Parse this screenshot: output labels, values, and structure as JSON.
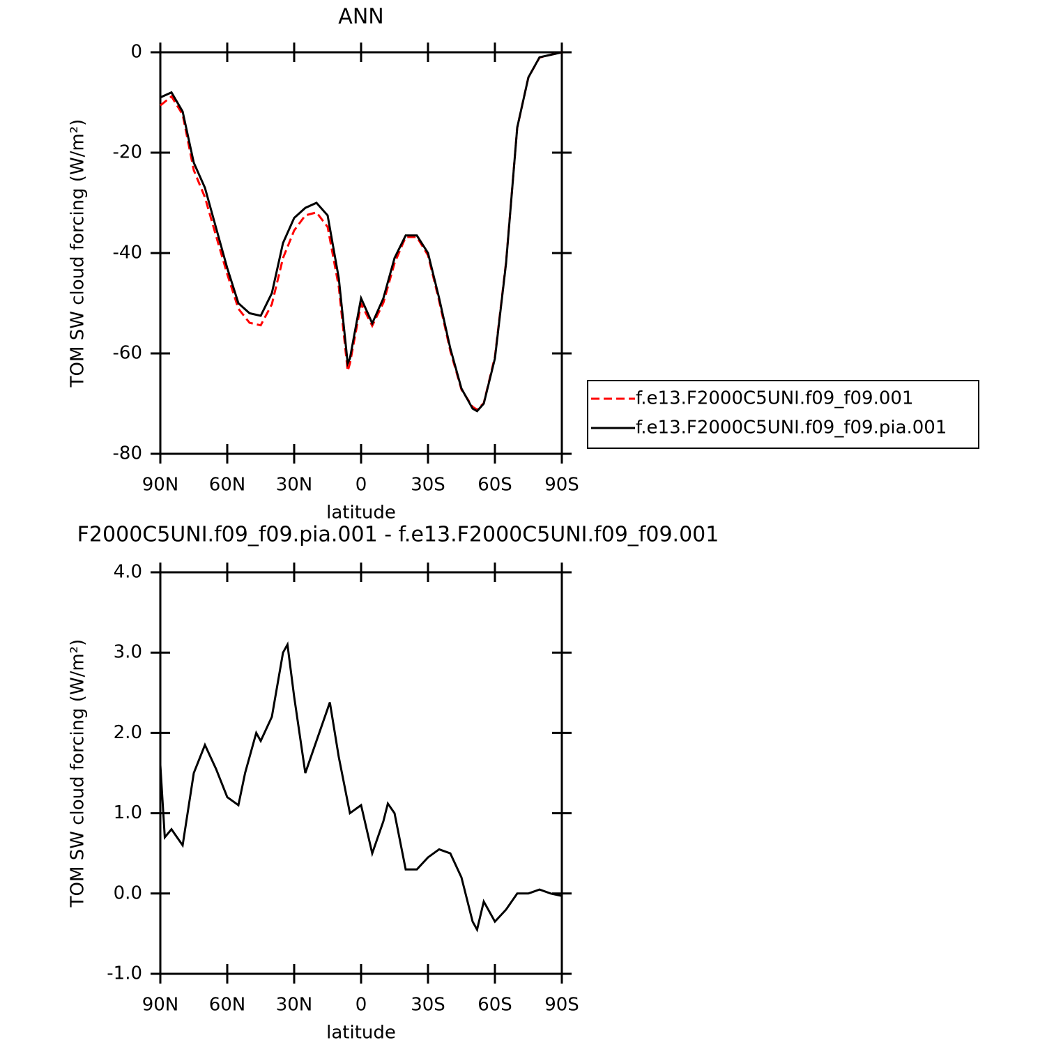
{
  "chart_data": [
    {
      "type": "line",
      "title": "ANN",
      "x_label": "latitude",
      "y_label": "TOM SW cloud forcing (W/m²)",
      "x": [
        90,
        85,
        80,
        75,
        70,
        65,
        60,
        55,
        50,
        45,
        40,
        35,
        30,
        25,
        20,
        15,
        10,
        6,
        5,
        0,
        -5,
        -10,
        -15,
        -20,
        -25,
        -30,
        -35,
        -40,
        -45,
        -50,
        -52,
        -55,
        -60,
        -65,
        -70,
        -75,
        -80,
        -85,
        -90
      ],
      "series": [
        {
          "name": "f.e13.F2000C5UNI.f09_f09.001",
          "color": "#ff0000",
          "style": "dashed",
          "values": [
            -10.6,
            -8.8,
            -12.4,
            -23.5,
            -28.9,
            -36.6,
            -44.2,
            -51.1,
            -53.9,
            -54.4,
            -50.2,
            -41,
            -35.5,
            -32.5,
            -31.9,
            -34.8,
            -46.7,
            -63.5,
            -62,
            -50.1,
            -54.5,
            -49.9,
            -42,
            -36.8,
            -36.8,
            -40.45,
            -49.55,
            -59.5,
            -67.2,
            -70.65,
            -71.2,
            -69.9,
            -60.65,
            -41.8,
            -15,
            -5,
            -1.05,
            -0.5,
            0
          ]
        },
        {
          "name": "f.e13.F2000C5UNI.f09_f09.pia.001",
          "color": "#000000",
          "style": "solid",
          "values": [
            -9,
            -8,
            -11.8,
            -22,
            -27,
            -35,
            -43,
            -50,
            -52,
            -52.5,
            -48,
            -38,
            -33,
            -31,
            -30,
            -32.5,
            -45,
            -62,
            -61,
            -49,
            -54,
            -49,
            -41,
            -36.5,
            -36.5,
            -40,
            -49,
            -59,
            -67,
            -71,
            -71.5,
            -70,
            -61,
            -42,
            -15,
            -5,
            -1,
            -0.5,
            0
          ]
        }
      ],
      "xlim": [
        90,
        -90
      ],
      "xticks": [
        {
          "value": 90,
          "label": "90N"
        },
        {
          "value": 60,
          "label": "60N"
        },
        {
          "value": 30,
          "label": "30N"
        },
        0,
        {
          "value": -30,
          "label": "30S"
        },
        {
          "value": -60,
          "label": "60S"
        },
        {
          "value": -90,
          "label": "90S"
        }
      ],
      "ylim": [
        -80,
        0
      ],
      "yticks": [
        0,
        -20,
        -40,
        -60,
        -80
      ],
      "legend": "outside-right"
    },
    {
      "type": "line",
      "title": "F2000C5UNI.f09_f09.pia.001 - f.e13.F2000C5UNI.f09_f09.001",
      "x_label": "latitude",
      "y_label": "TOM SW cloud forcing (W/m²)",
      "x": [
        90,
        88,
        85,
        80,
        75,
        70,
        65,
        60,
        55,
        52,
        47,
        45,
        40,
        35,
        33,
        30,
        25,
        20,
        15,
        14,
        10,
        5,
        0,
        -5,
        -10,
        -12,
        -15,
        -20,
        -25,
        -30,
        -35,
        -40,
        -45,
        -50,
        -52,
        -55,
        -60,
        -65,
        -70,
        -75,
        -80,
        -85,
        -90
      ],
      "series": [
        {
          "name": "difference",
          "color": "#000000",
          "style": "solid",
          "values": [
            1.6,
            0.7,
            0.8,
            0.6,
            1.5,
            1.85,
            1.55,
            1.2,
            1.1,
            1.5,
            2.0,
            1.9,
            2.2,
            3.0,
            3.1,
            2.45,
            1.5,
            1.9,
            2.3,
            2.38,
            1.7,
            1.0,
            1.1,
            0.5,
            0.9,
            1.12,
            1.0,
            0.3,
            0.3,
            0.45,
            0.55,
            0.5,
            0.2,
            -0.35,
            -0.45,
            -0.1,
            -0.35,
            -0.2,
            0.0,
            0.0,
            0.05,
            0.0,
            -0.03
          ]
        }
      ],
      "xlim": [
        90,
        -90
      ],
      "xticks": [
        {
          "value": 90,
          "label": "90N"
        },
        {
          "value": 60,
          "label": "60N"
        },
        {
          "value": 30,
          "label": "30N"
        },
        0,
        {
          "value": -30,
          "label": "30S"
        },
        {
          "value": -60,
          "label": "60S"
        },
        {
          "value": -90,
          "label": "90S"
        }
      ],
      "ylim": [
        -1,
        4
      ],
      "yticks": [
        {
          "value": 4,
          "label": "4.0"
        },
        {
          "value": 3,
          "label": "3.0"
        },
        {
          "value": 2,
          "label": "2.0"
        },
        {
          "value": 1,
          "label": "1.0"
        },
        {
          "value": 0,
          "label": "0.0"
        },
        {
          "value": -1,
          "label": "-1.0"
        }
      ]
    }
  ]
}
